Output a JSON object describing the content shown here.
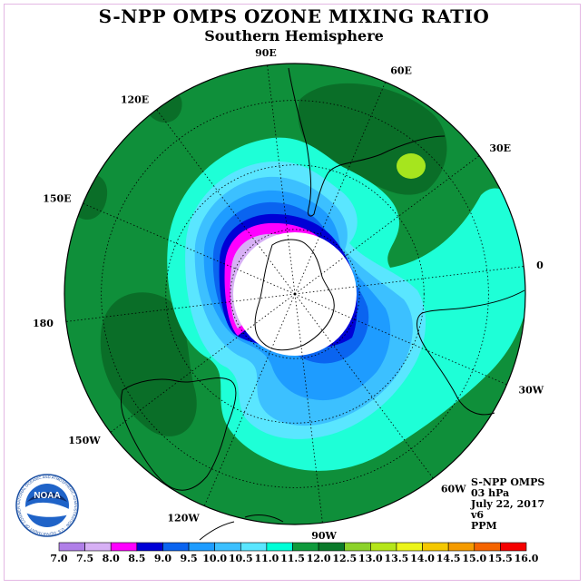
{
  "title": "S-NPP OMPS OZONE MIXING RATIO",
  "subtitle": "Southern Hemisphere",
  "longitude_labels": [
    {
      "text": "90W",
      "lon": -90
    },
    {
      "text": "60W",
      "lon": -60
    },
    {
      "text": "30W",
      "lon": -30
    },
    {
      "text": "0",
      "lon": 0
    },
    {
      "text": "30E",
      "lon": 30
    },
    {
      "text": "60E",
      "lon": 60
    },
    {
      "text": "90E",
      "lon": 90
    },
    {
      "text": "120E",
      "lon": 120
    },
    {
      "text": "150E",
      "lon": 150
    },
    {
      "text": "180",
      "lon": 180
    },
    {
      "text": "150W",
      "lon": -150
    },
    {
      "text": "120W",
      "lon": -120
    }
  ],
  "info": {
    "instrument": "S-NPP OMPS",
    "level": "03 hPa",
    "date": "July 22, 2017",
    "version": "v6",
    "units": "PPM"
  },
  "logo": {
    "text": "NOAA",
    "ring_text": "NATIONAL OCEANIC AND ATMOSPHERIC ADMINISTRATION · U.S. DEPARTMENT OF COMMERCE"
  },
  "colorbar": {
    "ticks": [
      "7.0",
      "7.5",
      "8.0",
      "8.5",
      "9.0",
      "9.5",
      "10.0",
      "10.5",
      "11.0",
      "11.5",
      "12.0",
      "12.5",
      "13.0",
      "13.5",
      "14.0",
      "14.5",
      "15.0",
      "15.5",
      "16.0"
    ],
    "colors": [
      "#b07fe8",
      "#d7b0f5",
      "#ff00ff",
      "#0000d6",
      "#0a64f0",
      "#1e9cff",
      "#3cc0ff",
      "#5ae6ff",
      "#00ffd7",
      "#0f9a3c",
      "#0a7a2a",
      "#8cd22a",
      "#b5e61a",
      "#ecf51a",
      "#f5c800",
      "#f59b00",
      "#f56400",
      "#f50000",
      "#8c5a3c"
    ]
  },
  "map_colors": {
    "band_11_5": "#0f8f3a",
    "band_12_0": "#0a6e28",
    "band_12_5": "#a6e51e",
    "band_11_0": "#1effd7",
    "band_10_5": "#5ae6ff",
    "band_10_0": "#3cc0ff",
    "band_9_5": "#1e9cff",
    "band_9_0": "#0a64f0",
    "band_8_5": "#0000d6",
    "band_8_0": "#ff00ff",
    "band_7_5": "#d7b0f5",
    "no_data": "#ffffff"
  }
}
